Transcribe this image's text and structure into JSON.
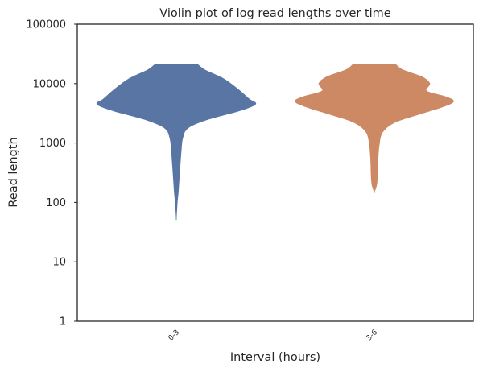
{
  "chart_data": {
    "type": "violin",
    "title": "Violin plot of log read lengths over time",
    "xlabel": "Interval (hours)",
    "ylabel": "Read length",
    "y_scale": "log",
    "ylim": [
      1,
      100000
    ],
    "y_ticks": [
      {
        "value": 1,
        "label": "1"
      },
      {
        "value": 10,
        "label": "10"
      },
      {
        "value": 100,
        "label": "100"
      },
      {
        "value": 1000,
        "label": "1000"
      },
      {
        "value": 10000,
        "label": "10000"
      },
      {
        "value": 100000,
        "label": "100000"
      }
    ],
    "categories": [
      "0-3",
      "3-6"
    ],
    "grid": false,
    "series": [
      {
        "category": "0-3",
        "color": "#5975a4",
        "profile": [
          {
            "y": 21000,
            "w": 0.27
          },
          {
            "y": 17000,
            "w": 0.36
          },
          {
            "y": 12000,
            "w": 0.6
          },
          {
            "y": 8000,
            "w": 0.78
          },
          {
            "y": 5500,
            "w": 0.92
          },
          {
            "y": 4500,
            "w": 1.0
          },
          {
            "y": 3500,
            "w": 0.8
          },
          {
            "y": 2500,
            "w": 0.4
          },
          {
            "y": 1800,
            "w": 0.15
          },
          {
            "y": 1200,
            "w": 0.08
          },
          {
            "y": 700,
            "w": 0.06
          },
          {
            "y": 300,
            "w": 0.04
          },
          {
            "y": 150,
            "w": 0.025
          },
          {
            "y": 100,
            "w": 0.012
          },
          {
            "y": 55,
            "w": 0.0
          }
        ]
      },
      {
        "category": "3-6",
        "color": "#cc8963",
        "profile": [
          {
            "y": 21000,
            "w": 0.27
          },
          {
            "y": 17000,
            "w": 0.36
          },
          {
            "y": 13000,
            "w": 0.6
          },
          {
            "y": 10000,
            "w": 0.7
          },
          {
            "y": 7500,
            "w": 0.66
          },
          {
            "y": 6000,
            "w": 0.9
          },
          {
            "y": 5000,
            "w": 1.0
          },
          {
            "y": 4000,
            "w": 0.85
          },
          {
            "y": 3000,
            "w": 0.55
          },
          {
            "y": 2200,
            "w": 0.25
          },
          {
            "y": 1500,
            "w": 0.1
          },
          {
            "y": 900,
            "w": 0.06
          },
          {
            "y": 500,
            "w": 0.045
          },
          {
            "y": 300,
            "w": 0.04
          },
          {
            "y": 200,
            "w": 0.03
          },
          {
            "y": 150,
            "w": 0.0
          }
        ]
      }
    ]
  }
}
